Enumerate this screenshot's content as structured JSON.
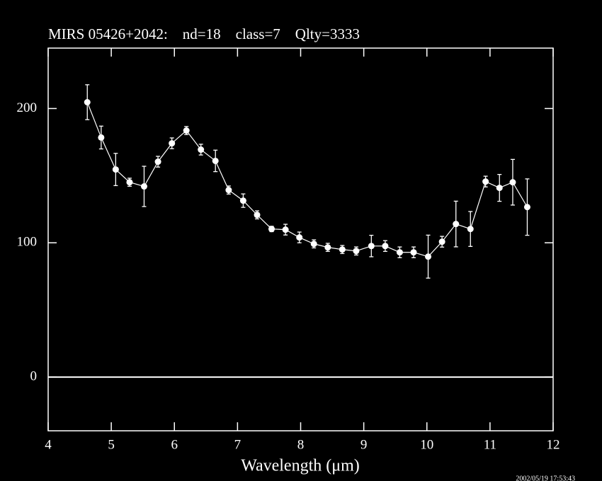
{
  "chart_data": {
    "type": "errorbar",
    "title": "MIRS 05426+2042:    nd=18    class=7    Qlty=3333",
    "x_label": "Wavelength (μm)",
    "annotation": "2002/05/19 17:53:43",
    "x": [
      4.62,
      4.84,
      5.07,
      5.29,
      5.52,
      5.74,
      5.96,
      6.19,
      6.42,
      6.65,
      6.86,
      7.09,
      7.31,
      7.54,
      7.76,
      7.98,
      8.21,
      8.43,
      8.66,
      8.88,
      9.12,
      9.34,
      9.57,
      9.79,
      10.02,
      10.24,
      10.46,
      10.69,
      10.93,
      11.15,
      11.36,
      11.59
    ],
    "values": [
      204.7,
      178.4,
      154.6,
      145.1,
      142,
      160.4,
      174.1,
      183.6,
      169.4,
      161,
      139.3,
      131.4,
      120.8,
      110.3,
      109.8,
      104,
      99.2,
      96.6,
      95,
      93.9,
      97.6,
      97.6,
      92.9,
      92.9,
      89.7,
      100.8,
      114,
      110.3,
      145.6,
      140.9,
      145.1,
      126.6
    ],
    "errors": [
      13,
      8.5,
      12,
      3,
      15,
      4,
      4,
      3,
      4,
      8,
      3,
      5,
      3,
      2,
      4,
      4,
      3,
      3,
      3,
      3,
      8,
      4,
      4,
      4,
      16,
      4,
      17,
      13,
      4,
      10,
      17,
      21
    ],
    "color": "#ffffff",
    "xlim": [
      4,
      12
    ],
    "ylim": [
      -40,
      245
    ],
    "xticks": [
      4,
      5,
      6,
      7,
      8,
      9,
      10,
      11,
      12
    ],
    "yticks": [
      0,
      100,
      200
    ],
    "zero_line": true
  }
}
